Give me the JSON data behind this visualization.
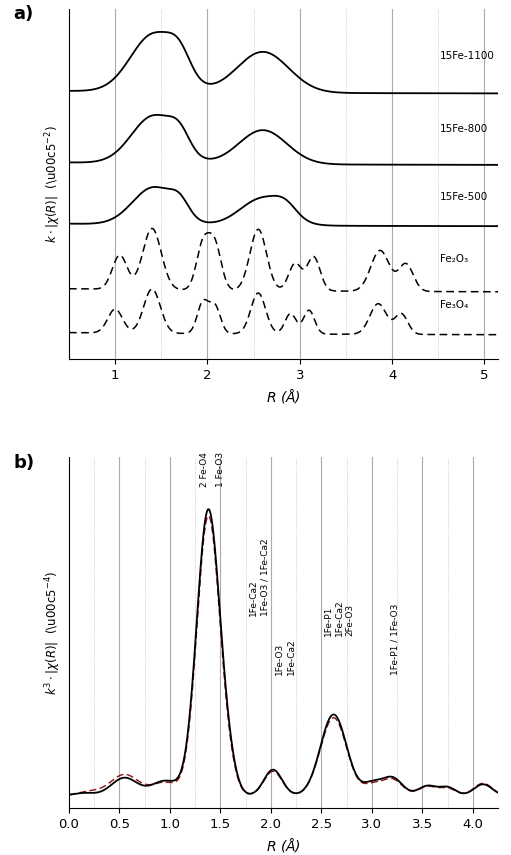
{
  "panel_a": {
    "title": "a)",
    "xlabel": "R (Å)",
    "ylabel": "k·|χ(R)|  (Å⁻²)",
    "xlim": [
      0.5,
      5.15
    ],
    "vlines_solid": [
      1.0,
      2.0,
      3.0,
      4.0,
      5.0
    ],
    "vlines_dotted": [
      1.5,
      2.5,
      3.5,
      4.5
    ],
    "xticks": [
      1,
      2,
      3,
      4,
      5
    ]
  },
  "panel_b": {
    "title": "b)",
    "xlabel": "R (Å)",
    "ylabel": "k³·|χ(R)|  (Å⁻⁴)",
    "xlim": [
      0.0,
      4.25
    ],
    "vlines_solid": [
      0.5,
      1.0,
      1.5,
      2.0,
      2.5,
      3.0,
      3.5,
      4.0
    ],
    "vlines_dotted": [
      0.25,
      0.75,
      1.25,
      1.75,
      2.25,
      2.75,
      3.25,
      3.75
    ],
    "xticks": [
      0,
      0.5,
      1.0,
      1.5,
      2.0,
      2.5,
      3.0,
      3.5,
      4.0
    ]
  },
  "color_black": "#000000",
  "color_darkred": "#8B1010",
  "background": "#ffffff"
}
